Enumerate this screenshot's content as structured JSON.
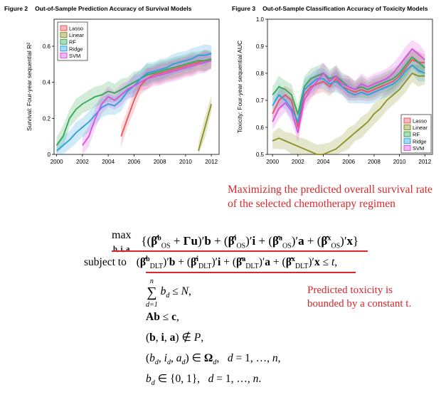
{
  "figure2": {
    "number": "Figure 2",
    "title": "Out-of-Sample Prediction Accuracy of Survival Models",
    "ylabel": "Survival: Four-year sequential R²"
  },
  "figure3": {
    "number": "Figure 3",
    "title": "Out-of-Sample Classification Accuracy of Toxicity Models",
    "ylabel": "Toxicity: Four-year sequential AUC"
  },
  "legend": {
    "items": [
      {
        "name": "Lasso",
        "color": "#e8545a"
      },
      {
        "name": "Linear",
        "color": "#8a8f1e"
      },
      {
        "name": "RF",
        "color": "#33a852"
      },
      {
        "name": "Ridge",
        "color": "#2a9fe0"
      },
      {
        "name": "SVM",
        "color": "#d94fe0"
      }
    ]
  },
  "chart_data": [
    {
      "type": "line",
      "title": "Out-of-Sample Prediction Accuracy of Survival Models",
      "xlabel": "",
      "ylabel": "Survival: Four-year sequential R²",
      "xlim": [
        1999.8,
        2012.6
      ],
      "ylim": [
        0,
        0.75
      ],
      "xticks": [
        "2000",
        "2002",
        "2004",
        "2006",
        "2008",
        "2010",
        "2012"
      ],
      "yticks": [
        "0",
        "0.2",
        "0.4",
        "0.6"
      ],
      "x": [
        2000,
        2000.5,
        2001,
        2001.5,
        2002,
        2002.5,
        2003,
        2003.5,
        2004,
        2004.5,
        2005,
        2005.5,
        2006,
        2006.5,
        2007,
        2007.5,
        2008,
        2008.5,
        2009,
        2009.5,
        2010,
        2010.5,
        2011,
        2011.5,
        2012
      ],
      "series": [
        {
          "name": "Lasso",
          "values": [
            null,
            null,
            null,
            null,
            null,
            null,
            null,
            null,
            null,
            null,
            0.1,
            0.2,
            0.3,
            0.38,
            0.42,
            0.44,
            0.45,
            0.46,
            0.47,
            0.48,
            0.49,
            0.5,
            0.51,
            0.52,
            0.52
          ]
        },
        {
          "name": "Linear",
          "values": [
            null,
            null,
            null,
            null,
            null,
            null,
            null,
            null,
            null,
            null,
            null,
            null,
            null,
            null,
            null,
            null,
            null,
            null,
            null,
            null,
            null,
            null,
            0.02,
            0.15,
            0.28
          ]
        },
        {
          "name": "RF",
          "values": [
            0.05,
            0.1,
            0.2,
            0.25,
            0.28,
            0.3,
            0.32,
            0.33,
            0.35,
            0.34,
            0.36,
            0.38,
            0.4,
            0.42,
            0.44,
            0.45,
            0.46,
            0.47,
            0.48,
            0.49,
            0.5,
            0.51,
            0.52,
            0.52,
            0.53
          ]
        },
        {
          "name": "Ridge",
          "values": [
            0.02,
            0.05,
            0.08,
            0.12,
            0.15,
            0.18,
            0.22,
            0.26,
            0.28,
            0.27,
            0.3,
            0.35,
            0.38,
            0.42,
            0.45,
            0.46,
            0.47,
            0.48,
            0.5,
            0.51,
            0.52,
            0.53,
            0.55,
            0.55,
            0.56
          ]
        },
        {
          "name": "SVM",
          "values": [
            null,
            null,
            null,
            null,
            0.05,
            0.1,
            0.2,
            0.28,
            0.32,
            0.3,
            0.33,
            0.36,
            0.38,
            0.4,
            0.42,
            0.43,
            0.44,
            0.45,
            0.46,
            0.47,
            0.48,
            0.49,
            0.5,
            0.51,
            0.52
          ]
        }
      ]
    },
    {
      "type": "line",
      "title": "Out-of-Sample Classification Accuracy of Toxicity Models",
      "xlabel": "",
      "ylabel": "Toxicity: Four-year sequential AUC",
      "xlim": [
        1999.6,
        2012.6
      ],
      "ylim": [
        0.5,
        1.0
      ],
      "xticks": [
        "2000",
        "2002",
        "2004",
        "2006",
        "2008",
        "2010",
        "2012"
      ],
      "yticks": [
        "0.5",
        "0.6",
        "0.7",
        "0.8",
        "0.9",
        "1.0"
      ],
      "x": [
        2000,
        2000.5,
        2001,
        2001.5,
        2002,
        2002.5,
        2003,
        2003.5,
        2004,
        2004.5,
        2005,
        2005.5,
        2006,
        2006.5,
        2007,
        2007.5,
        2008,
        2008.5,
        2009,
        2009.5,
        2010,
        2010.5,
        2011,
        2011.5,
        2012
      ],
      "series": [
        {
          "name": "Lasso",
          "values": [
            0.65,
            0.7,
            0.72,
            0.7,
            0.6,
            0.72,
            0.75,
            0.76,
            0.77,
            0.75,
            0.78,
            0.75,
            0.74,
            0.73,
            0.74,
            0.73,
            0.74,
            0.75,
            0.76,
            0.77,
            0.79,
            0.82,
            0.85,
            0.84,
            0.84
          ]
        },
        {
          "name": "Linear",
          "values": [
            0.55,
            0.56,
            0.55,
            0.54,
            0.53,
            0.52,
            0.51,
            0.5,
            0.5,
            0.51,
            0.52,
            0.54,
            0.56,
            0.58,
            0.6,
            0.62,
            0.65,
            0.67,
            0.7,
            0.72,
            0.74,
            0.77,
            0.8,
            0.79,
            0.79
          ]
        },
        {
          "name": "RF",
          "values": [
            0.72,
            0.75,
            0.74,
            0.72,
            0.65,
            0.75,
            0.78,
            0.79,
            0.8,
            0.78,
            0.79,
            0.77,
            0.75,
            0.74,
            0.75,
            0.74,
            0.75,
            0.76,
            0.77,
            0.78,
            0.8,
            0.83,
            0.86,
            0.84,
            0.82
          ]
        },
        {
          "name": "Ridge",
          "values": [
            0.68,
            0.72,
            0.7,
            0.67,
            0.62,
            0.74,
            0.76,
            0.78,
            0.78,
            0.76,
            0.77,
            0.75,
            0.73,
            0.72,
            0.73,
            0.72,
            0.73,
            0.74,
            0.75,
            0.76,
            0.78,
            0.81,
            0.83,
            0.81,
            0.8
          ]
        },
        {
          "name": "SVM",
          "values": [
            0.62,
            0.67,
            0.69,
            0.66,
            0.58,
            0.7,
            0.74,
            0.77,
            0.8,
            0.77,
            0.79,
            0.76,
            0.75,
            0.74,
            0.76,
            0.75,
            0.76,
            0.77,
            0.78,
            0.8,
            0.83,
            0.86,
            0.89,
            0.87,
            0.85
          ]
        }
      ]
    }
  ],
  "annotations": {
    "objective_note": "Maximizing the predicted overall survival rate of the selected chemotherapy regimen",
    "constraint_note": "Predicted toxicity is bounded by a constant t."
  },
  "model": {
    "max_word": "max",
    "max_sub": "b, i, a",
    "subject_to": "subject to",
    "sum_upper": "n",
    "sum_lower": "d=1"
  }
}
